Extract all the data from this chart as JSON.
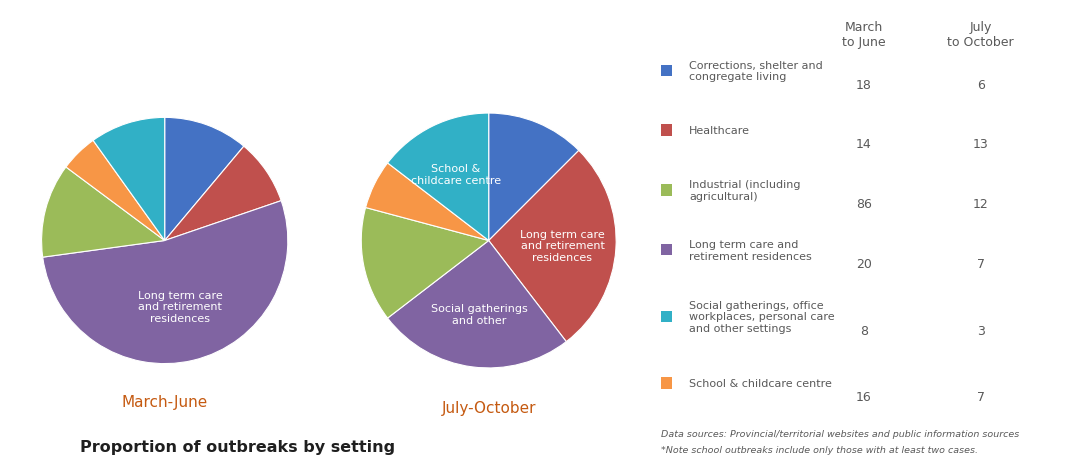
{
  "march_june_values": [
    18,
    14,
    86,
    20,
    8,
    16
  ],
  "july_october_values": [
    6,
    13,
    12,
    7,
    3,
    7
  ],
  "colors": [
    "#4472C4",
    "#C0504D",
    "#9BBB59",
    "#8064A2",
    "#31B0C6",
    "#F79646"
  ],
  "march_june_label": "March-June",
  "july_october_label": "July-October",
  "title": "Proportion of outbreaks by setting",
  "col_header1": "March\nto June",
  "col_header2": "July\nto October",
  "legend_rows": [
    {
      "label": "Corrections, shelter and\ncongregate living",
      "mj": 18,
      "jo": 6
    },
    {
      "label": "Healthcare",
      "mj": 14,
      "jo": 13
    },
    {
      "label": "Industrial (including\nagricultural)",
      "mj": 86,
      "jo": 12
    },
    {
      "label": "Long term care and\nretirement residences",
      "mj": 20,
      "jo": 7
    },
    {
      "label": "Social gatherings, office\nworkplaces, personal care\nand other settings",
      "mj": 8,
      "jo": 3
    },
    {
      "label": "School & childcare centre",
      "mj": 16,
      "jo": 7
    }
  ],
  "footnote1": "Data sources: Provincial/territorial websites and public information sources",
  "footnote2": "*Note school outbreaks include only those with at least two cases.",
  "background": "#FFFFFF",
  "text_color": "#595959",
  "title_color": "#1F1F1F",
  "period_color": "#C55A11",
  "label_color_white": "#FFFFFF"
}
